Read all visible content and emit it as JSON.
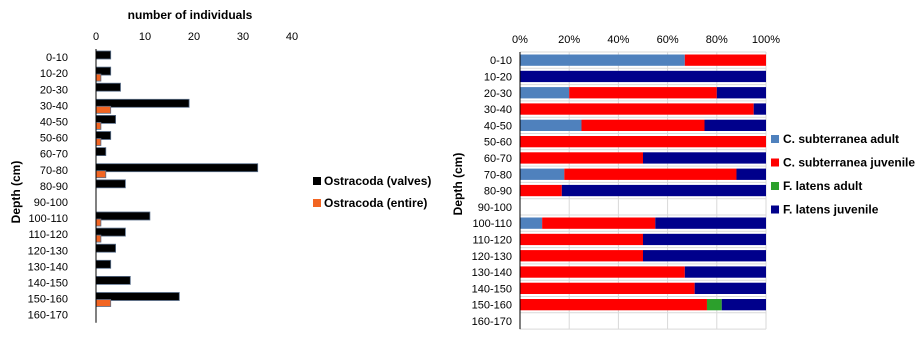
{
  "chart_data": [
    {
      "type": "bar",
      "orientation": "horizontal",
      "xlabel": "number of individuals",
      "ylabel": "Depth (cm)",
      "xlim": [
        0,
        40
      ],
      "xticks": [
        "0",
        "10",
        "20",
        "30",
        "40"
      ],
      "categories": [
        "0-10",
        "10-20",
        "20-30",
        "30-40",
        "40-50",
        "50-60",
        "60-70",
        "70-80",
        "80-90",
        "90-100",
        "100-110",
        "110-120",
        "120-130",
        "130-140",
        "140-150",
        "150-160",
        "160-170"
      ],
      "series": [
        {
          "name": "Ostracoda (valves)",
          "color": "#000000",
          "values": [
            3,
            3,
            5,
            19,
            4,
            3,
            2,
            33,
            6,
            0,
            11,
            6,
            4,
            3,
            7,
            17,
            0
          ]
        },
        {
          "name": "Ostracoda (entire)",
          "color": "#f26522",
          "values": [
            0,
            1,
            0,
            3,
            1,
            1,
            0,
            2,
            0,
            0,
            1,
            1,
            0,
            0,
            0,
            3,
            0
          ]
        }
      ],
      "legend": "right",
      "grid": false
    },
    {
      "type": "bar",
      "orientation": "horizontal",
      "stacked": "percent",
      "ylabel": "Depth (cm)",
      "xlim": [
        0,
        100
      ],
      "xticks": [
        "0%",
        "20%",
        "40%",
        "60%",
        "80%",
        "100%"
      ],
      "categories": [
        "0-10",
        "10-20",
        "20-30",
        "30-40",
        "40-50",
        "50-60",
        "60-70",
        "70-80",
        "80-90",
        "90-100",
        "100-110",
        "110-120",
        "120-130",
        "130-140",
        "140-150",
        "150-160",
        "160-170"
      ],
      "series": [
        {
          "name": "C. subterranea adult",
          "color": "#4f81bd",
          "values": [
            67,
            0,
            20,
            0,
            25,
            0,
            0,
            18,
            0,
            0,
            9,
            0,
            0,
            0,
            0,
            0,
            0
          ]
        },
        {
          "name": "C. subterranea juvenile",
          "color": "#ff0000",
          "values": [
            33,
            0,
            60,
            95,
            50,
            100,
            50,
            70,
            17,
            0,
            46,
            50,
            50,
            67,
            71,
            76,
            0
          ]
        },
        {
          "name": "F. latens adult",
          "color": "#2ca02c",
          "values": [
            0,
            0,
            0,
            0,
            0,
            0,
            0,
            0,
            0,
            0,
            0,
            0,
            0,
            0,
            0,
            6,
            0
          ]
        },
        {
          "name": "F. latens juvenile",
          "color": "#00008b",
          "values": [
            0,
            100,
            20,
            5,
            25,
            0,
            50,
            12,
            83,
            0,
            45,
            50,
            50,
            33,
            29,
            18,
            0
          ]
        }
      ],
      "legend": "right",
      "grid": true
    }
  ]
}
